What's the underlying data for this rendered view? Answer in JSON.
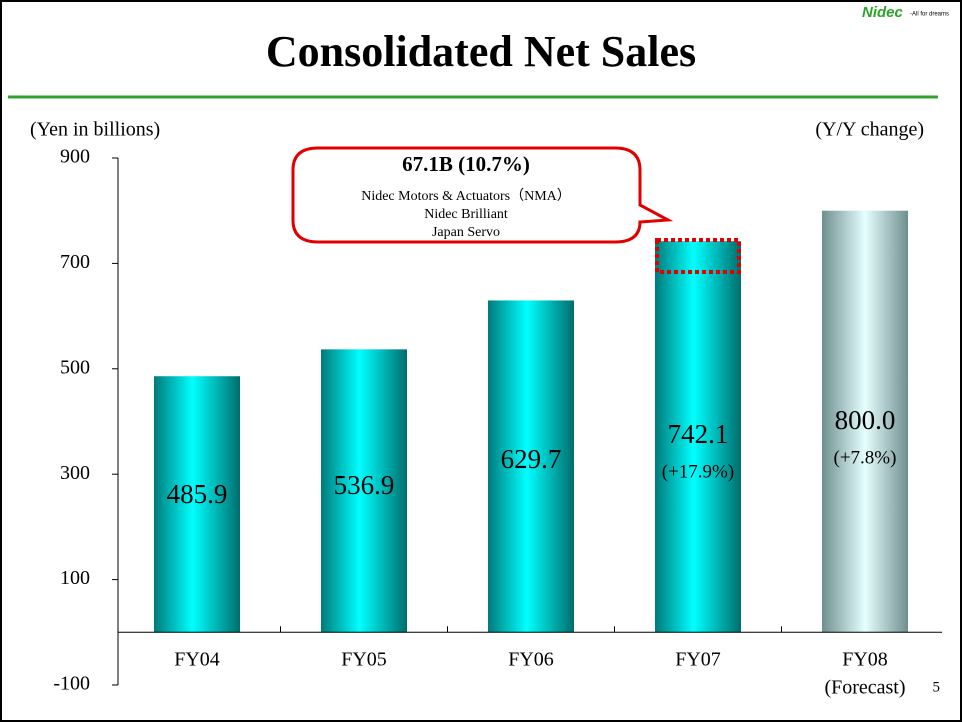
{
  "chart_data": {
    "type": "bar",
    "title": "Consolidated Net Sales",
    "y_axis_label": "(Yen in billions)",
    "y2_axis_label": "(Y/Y change)",
    "categories": [
      "FY04",
      "FY05",
      "FY06",
      "FY07",
      "FY08"
    ],
    "category_note": "(Forecast)",
    "values": [
      485.9,
      536.9,
      629.7,
      742.1,
      800.0
    ],
    "value_labels": [
      "485.9",
      "536.9",
      "629.7",
      "742.1",
      "800.0"
    ],
    "change_labels": [
      null,
      null,
      null,
      "(+17.9%)",
      "(+7.8%)"
    ],
    "colors": [
      "teal",
      "teal",
      "teal",
      "teal",
      "forecast"
    ],
    "ylim": [
      -100,
      900
    ],
    "yticks": [
      -100,
      100,
      300,
      500,
      700,
      900
    ],
    "annotation": {
      "headline": "67.1B (10.7%)",
      "lines": [
        "Nidec Motors & Actuators（NMA）",
        "Nidec Brilliant",
        "Japan Servo"
      ]
    },
    "logo": {
      "brand": "Nidec",
      "tagline": "-All for dreams"
    },
    "page_number": "5"
  }
}
